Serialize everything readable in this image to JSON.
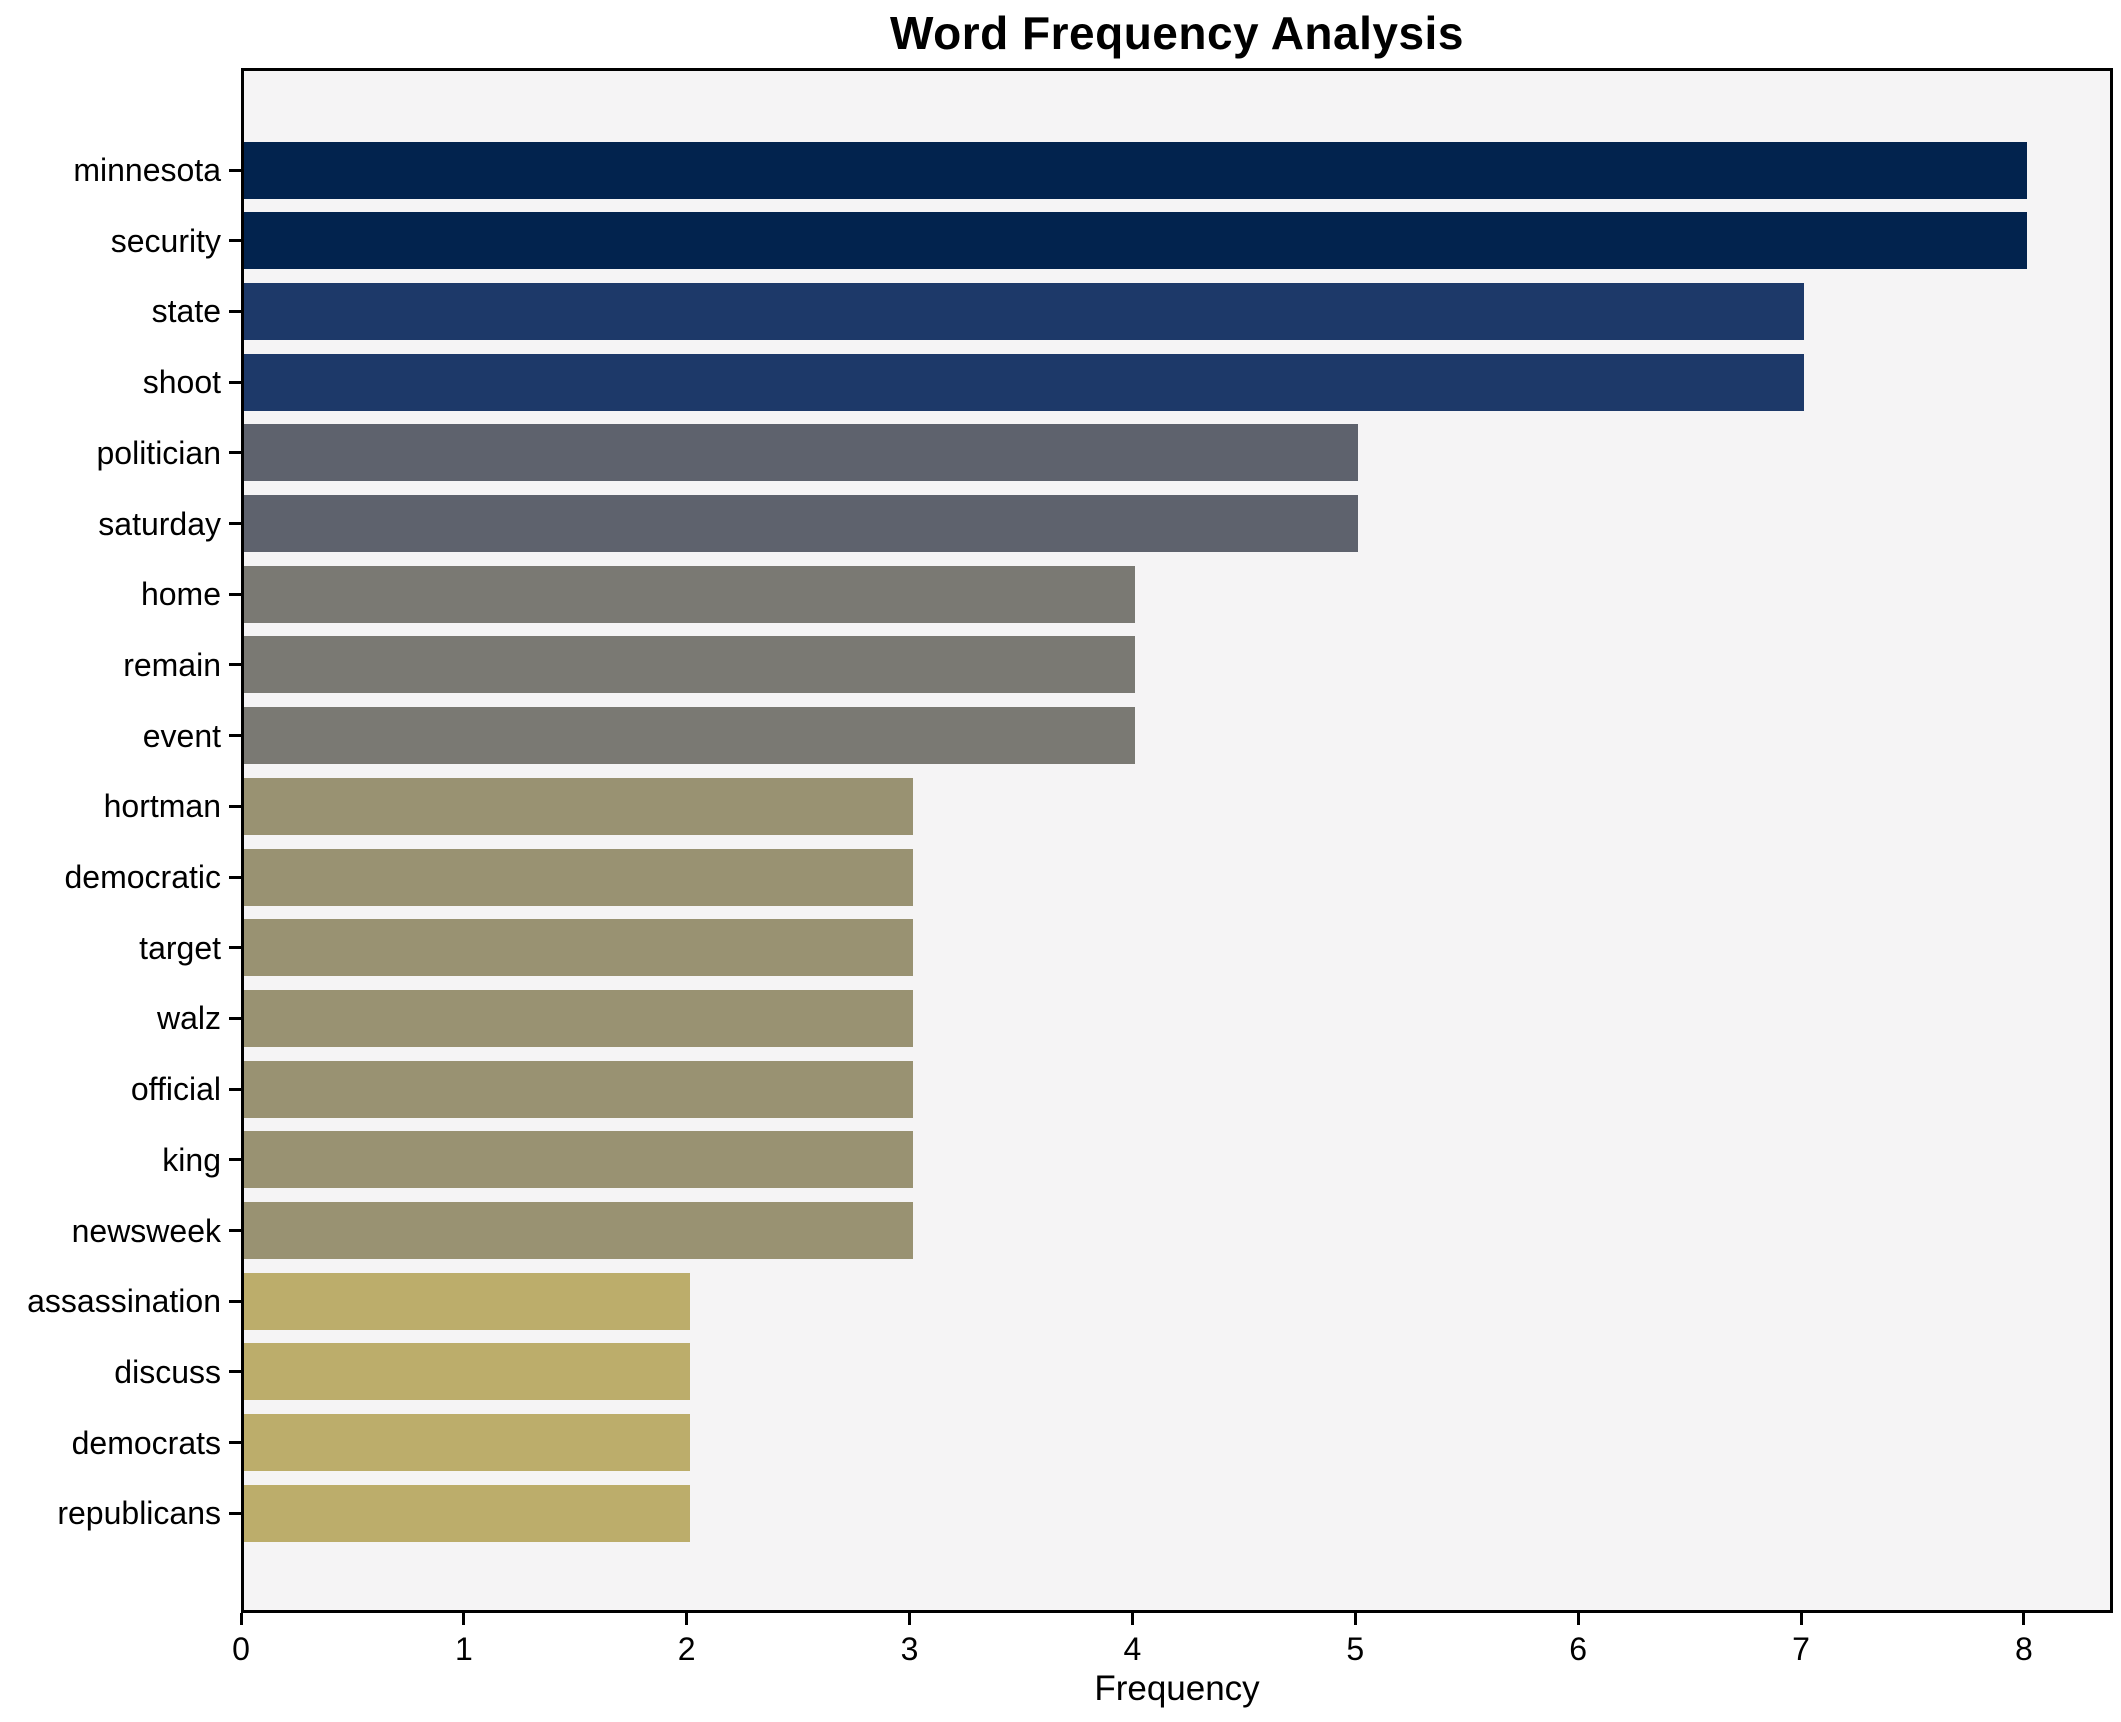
{
  "chart_data": {
    "type": "bar",
    "orientation": "horizontal",
    "title": "Word Frequency Analysis",
    "xlabel": "Frequency",
    "ylabel": "",
    "categories": [
      "minnesota",
      "security",
      "state",
      "shoot",
      "politician",
      "saturday",
      "home",
      "remain",
      "event",
      "hortman",
      "democratic",
      "target",
      "walz",
      "official",
      "king",
      "newsweek",
      "assassination",
      "discuss",
      "democrats",
      "republicans"
    ],
    "values": [
      8,
      8,
      7,
      7,
      5,
      5,
      4,
      4,
      4,
      3,
      3,
      3,
      3,
      3,
      3,
      3,
      2,
      2,
      2,
      2
    ],
    "xlim": [
      0,
      8.4
    ],
    "xtick_labels": [
      "0",
      "1",
      "2",
      "3",
      "4",
      "5",
      "6",
      "7",
      "8"
    ],
    "grid": false,
    "legend": false,
    "colors": {
      "figure_background": "#ffffff",
      "plot_background": "#f5f4f5",
      "axis": "#000000",
      "text": "#000000",
      "by_value": {
        "2": "#bcad6b",
        "3": "#999272",
        "4": "#7a7973",
        "5": "#5e626d",
        "7": "#1d3969",
        "8": "#02234e"
      }
    }
  }
}
